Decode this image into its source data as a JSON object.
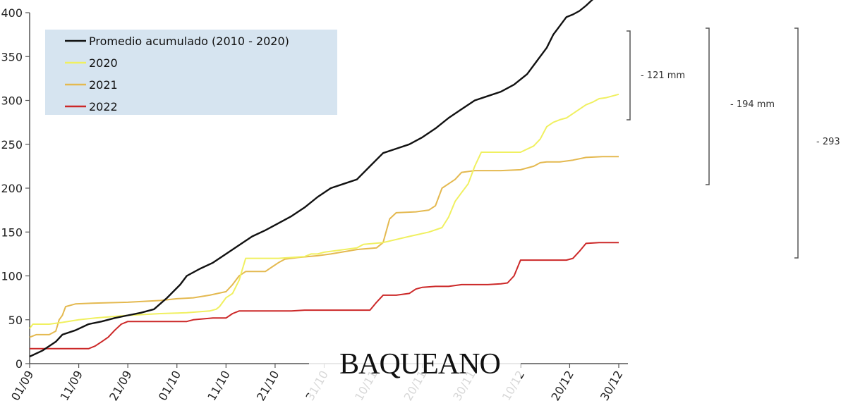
{
  "chart_data": {
    "type": "line",
    "title": "",
    "xlabel": "",
    "ylabel": "",
    "ylim": [
      0,
      400
    ],
    "grid": false,
    "legend_position": "top-left",
    "y_ticks": [
      0,
      50,
      100,
      150,
      200,
      250,
      300,
      350,
      400
    ],
    "y_tick_labels": [
      "0",
      "50",
      "100",
      "150",
      "200",
      "250",
      "300",
      "350",
      "400"
    ],
    "x_tick_labels": [
      "01/09",
      "11/09",
      "21/09",
      "01/10",
      "11/10",
      "21/10",
      "31/10",
      "10/11",
      "20/11",
      "30/11",
      "10/12",
      "20/12",
      "30/12"
    ],
    "series": [
      {
        "name": "Promedio acumulado (2010 - 2020)",
        "color": "#111111",
        "points": [
          [
            0,
            8
          ],
          [
            4,
            15
          ],
          [
            8,
            25
          ],
          [
            10,
            33
          ],
          [
            14,
            38
          ],
          [
            18,
            45
          ],
          [
            22,
            48
          ],
          [
            26,
            52
          ],
          [
            30,
            55
          ],
          [
            34,
            58
          ],
          [
            38,
            62
          ],
          [
            42,
            75
          ],
          [
            46,
            90
          ],
          [
            48,
            100
          ],
          [
            52,
            108
          ],
          [
            56,
            115
          ],
          [
            60,
            125
          ],
          [
            64,
            135
          ],
          [
            68,
            145
          ],
          [
            72,
            152
          ],
          [
            76,
            160
          ],
          [
            80,
            168
          ],
          [
            84,
            178
          ],
          [
            88,
            190
          ],
          [
            92,
            200
          ],
          [
            96,
            205
          ],
          [
            100,
            210
          ],
          [
            104,
            225
          ],
          [
            108,
            240
          ],
          [
            112,
            245
          ],
          [
            116,
            250
          ],
          [
            120,
            258
          ],
          [
            124,
            268
          ],
          [
            128,
            280
          ],
          [
            132,
            290
          ],
          [
            136,
            300
          ],
          [
            140,
            305
          ],
          [
            144,
            310
          ],
          [
            148,
            318
          ],
          [
            152,
            330
          ],
          [
            155,
            345
          ],
          [
            158,
            360
          ],
          [
            160,
            375
          ],
          [
            162,
            385
          ],
          [
            164,
            395
          ],
          [
            166,
            398
          ],
          [
            168,
            402
          ],
          [
            170,
            408
          ],
          [
            172,
            415
          ],
          [
            174,
            418
          ],
          [
            176,
            422
          ],
          [
            178,
            425
          ],
          [
            180,
            429
          ]
        ]
      },
      {
        "name": "2020",
        "color": "#f0f060",
        "points": [
          [
            0,
            40
          ],
          [
            1,
            45
          ],
          [
            6,
            45
          ],
          [
            10,
            47
          ],
          [
            15,
            50
          ],
          [
            20,
            52
          ],
          [
            30,
            55
          ],
          [
            40,
            57
          ],
          [
            48,
            58
          ],
          [
            55,
            60
          ],
          [
            57,
            62
          ],
          [
            58,
            65
          ],
          [
            60,
            75
          ],
          [
            62,
            80
          ],
          [
            64,
            95
          ],
          [
            66,
            120
          ],
          [
            70,
            120
          ],
          [
            76,
            120
          ],
          [
            80,
            121
          ],
          [
            84,
            122
          ],
          [
            86,
            125
          ],
          [
            88,
            125
          ],
          [
            90,
            127
          ],
          [
            100,
            132
          ],
          [
            102,
            136
          ],
          [
            108,
            138
          ],
          [
            116,
            145
          ],
          [
            122,
            150
          ],
          [
            126,
            155
          ],
          [
            128,
            167
          ],
          [
            130,
            185
          ],
          [
            132,
            195
          ],
          [
            134,
            205
          ],
          [
            136,
            225
          ],
          [
            138,
            241
          ],
          [
            142,
            241
          ],
          [
            150,
            241
          ],
          [
            154,
            248
          ],
          [
            156,
            256
          ],
          [
            158,
            270
          ],
          [
            160,
            275
          ],
          [
            162,
            278
          ],
          [
            164,
            280
          ],
          [
            166,
            285
          ],
          [
            168,
            290
          ],
          [
            170,
            295
          ],
          [
            172,
            298
          ],
          [
            174,
            302
          ],
          [
            176,
            303
          ],
          [
            178,
            305
          ],
          [
            180,
            307
          ]
        ]
      },
      {
        "name": "2021",
        "color": "#e4b950",
        "points": [
          [
            0,
            30
          ],
          [
            2,
            33
          ],
          [
            6,
            33
          ],
          [
            8,
            37
          ],
          [
            9,
            50
          ],
          [
            10,
            55
          ],
          [
            11,
            65
          ],
          [
            14,
            68
          ],
          [
            20,
            69
          ],
          [
            30,
            70
          ],
          [
            35,
            71
          ],
          [
            40,
            72
          ],
          [
            45,
            74
          ],
          [
            50,
            75
          ],
          [
            55,
            78
          ],
          [
            60,
            82
          ],
          [
            62,
            90
          ],
          [
            64,
            100
          ],
          [
            66,
            105
          ],
          [
            72,
            105
          ],
          [
            74,
            110
          ],
          [
            76,
            115
          ],
          [
            78,
            119
          ],
          [
            82,
            121
          ],
          [
            88,
            123
          ],
          [
            92,
            125
          ],
          [
            100,
            130
          ],
          [
            106,
            132
          ],
          [
            108,
            138
          ],
          [
            110,
            165
          ],
          [
            112,
            172
          ],
          [
            118,
            173
          ],
          [
            122,
            175
          ],
          [
            124,
            180
          ],
          [
            126,
            200
          ],
          [
            128,
            205
          ],
          [
            130,
            210
          ],
          [
            132,
            218
          ],
          [
            136,
            220
          ],
          [
            144,
            220
          ],
          [
            150,
            221
          ],
          [
            154,
            225
          ],
          [
            156,
            229
          ],
          [
            158,
            230
          ],
          [
            162,
            230
          ],
          [
            166,
            232
          ],
          [
            170,
            235
          ],
          [
            175,
            236
          ],
          [
            180,
            236
          ]
        ]
      },
      {
        "name": "2022",
        "color": "#cc2828",
        "points": [
          [
            0,
            17
          ],
          [
            8,
            17
          ],
          [
            16,
            17
          ],
          [
            18,
            17
          ],
          [
            20,
            20
          ],
          [
            22,
            25
          ],
          [
            24,
            30
          ],
          [
            26,
            38
          ],
          [
            28,
            45
          ],
          [
            30,
            48
          ],
          [
            40,
            48
          ],
          [
            48,
            48
          ],
          [
            50,
            50
          ],
          [
            56,
            52
          ],
          [
            60,
            52
          ],
          [
            62,
            57
          ],
          [
            64,
            60
          ],
          [
            70,
            60
          ],
          [
            76,
            60
          ],
          [
            80,
            60
          ],
          [
            84,
            61
          ],
          [
            90,
            61
          ],
          [
            104,
            61
          ],
          [
            106,
            70
          ],
          [
            108,
            78
          ],
          [
            112,
            78
          ],
          [
            116,
            80
          ],
          [
            118,
            85
          ],
          [
            120,
            87
          ],
          [
            124,
            88
          ],
          [
            128,
            88
          ],
          [
            132,
            90
          ],
          [
            136,
            90
          ],
          [
            140,
            90
          ],
          [
            144,
            91
          ],
          [
            146,
            92
          ],
          [
            148,
            100
          ],
          [
            150,
            118
          ],
          [
            154,
            118
          ],
          [
            160,
            118
          ],
          [
            164,
            118
          ],
          [
            166,
            120
          ],
          [
            168,
            128
          ],
          [
            170,
            137
          ],
          [
            174,
            138
          ],
          [
            180,
            138
          ]
        ]
      }
    ],
    "annotations": [
      {
        "label": "- 121 mm"
      },
      {
        "label": "- 194 mm"
      },
      {
        "label": "- 293"
      }
    ]
  },
  "watermark": "BAQUEANO",
  "colors": {
    "legend_background": "#d6e4f0",
    "axis": "#555555"
  }
}
